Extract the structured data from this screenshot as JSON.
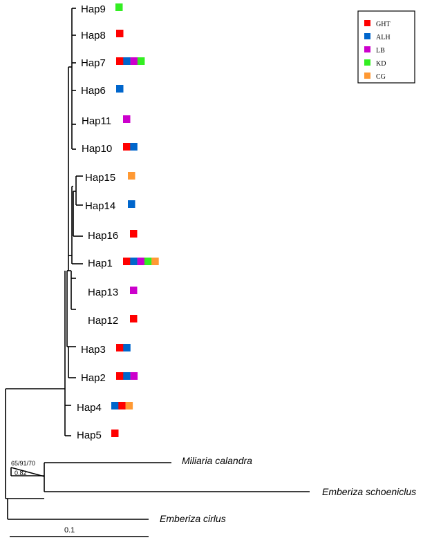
{
  "legend": [
    {
      "code": "GHT",
      "color": "#ff0000"
    },
    {
      "code": "ALH",
      "color": "#0066cc"
    },
    {
      "code": "LB",
      "color": "#cc00cc"
    },
    {
      "code": "KD",
      "color": "#33ee22"
    },
    {
      "code": "CG",
      "color": "#ff9933"
    }
  ],
  "haplotypes": [
    {
      "name": "Hap9",
      "populations": [
        "KD"
      ]
    },
    {
      "name": "Hap8",
      "populations": [
        "GHT"
      ]
    },
    {
      "name": "Hap7",
      "populations": [
        "GHT",
        "ALH",
        "LB",
        "KD"
      ]
    },
    {
      "name": "Hap6",
      "populations": [
        "ALH"
      ]
    },
    {
      "name": "Hap11",
      "populations": [
        "LB"
      ]
    },
    {
      "name": "Hap10",
      "populations": [
        "GHT",
        "ALH"
      ]
    },
    {
      "name": "Hap15",
      "populations": [
        "CG"
      ]
    },
    {
      "name": "Hap14",
      "populations": [
        "ALH"
      ]
    },
    {
      "name": "Hap16",
      "populations": [
        "GHT"
      ]
    },
    {
      "name": "Hap1",
      "populations": [
        "GHT",
        "ALH",
        "LB",
        "KD",
        "CG"
      ]
    },
    {
      "name": "Hap13",
      "populations": [
        "LB"
      ]
    },
    {
      "name": "Hap12",
      "populations": [
        "GHT"
      ]
    },
    {
      "name": "Hap3",
      "populations": [
        "GHT",
        "ALH"
      ]
    },
    {
      "name": "Hap2",
      "populations": [
        "GHT",
        "ALH",
        "LB"
      ]
    },
    {
      "name": "Hap4",
      "populations": [
        "ALH",
        "GHT",
        "CG"
      ]
    },
    {
      "name": "Hap5",
      "populations": [
        "GHT"
      ]
    }
  ],
  "outgroups": [
    "Miliaria calandra",
    "Emberiza schoeniclus",
    "Emberiza cirlus"
  ],
  "support": {
    "top": "65/91/70",
    "bottom": "0.82"
  },
  "scale": "0.1"
}
